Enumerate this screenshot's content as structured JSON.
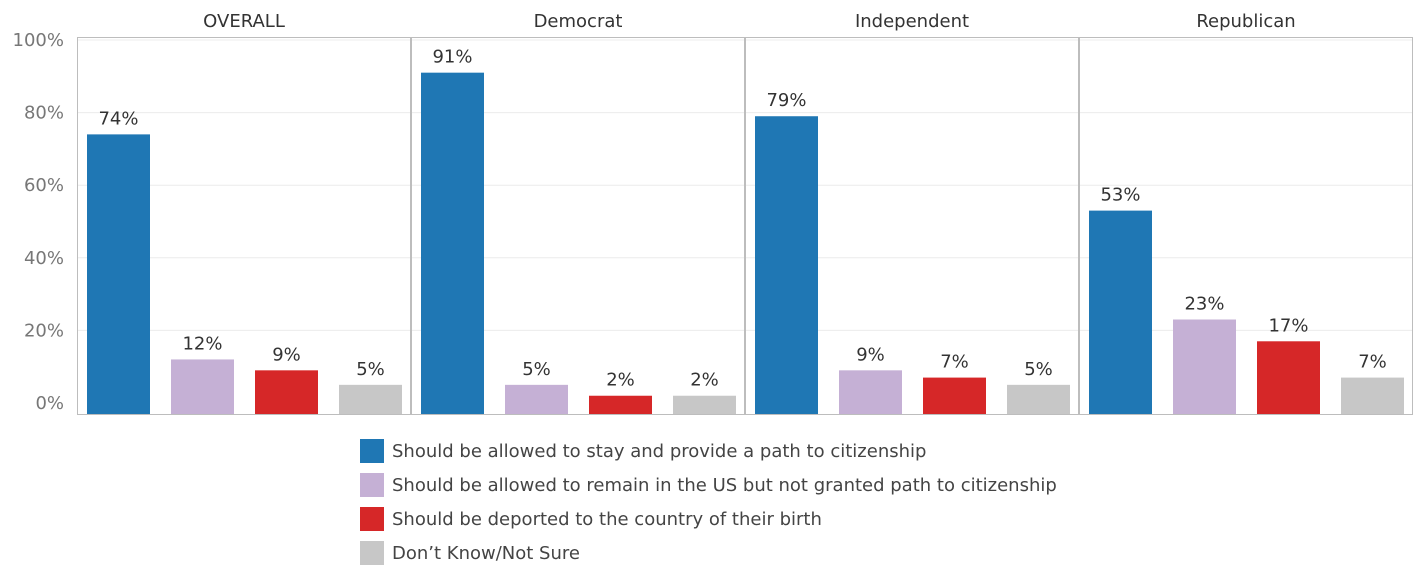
{
  "chart_data": {
    "type": "bar",
    "panels": [
      "OVERALL",
      "Democrat",
      "Independent",
      "Republican"
    ],
    "series": [
      {
        "name": "Should be allowed to stay and provide a path to citizenship",
        "color": "#1f77b4",
        "values": [
          74,
          91,
          79,
          53
        ]
      },
      {
        "name": "Should be allowed to remain in the US but not granted path to citizenship",
        "color": "#c5b0d5",
        "values": [
          12,
          5,
          9,
          23
        ]
      },
      {
        "name": "Should be deported to the country of their birth",
        "color": "#d62728",
        "values": [
          9,
          2,
          7,
          17
        ]
      },
      {
        "name": "Don’t Know/Not Sure",
        "color": "#c7c7c7",
        "values": [
          5,
          2,
          5,
          7
        ]
      }
    ],
    "value_labels": [
      [
        "74%",
        "91%",
        "79%",
        "53%"
      ],
      [
        "12%",
        "5%",
        "9%",
        "23%"
      ],
      [
        "9%",
        "2%",
        "7%",
        "17%"
      ],
      [
        "5%",
        "2%",
        "5%",
        "7%"
      ]
    ],
    "y_ticks": [
      "0%",
      "20%",
      "40%",
      "60%",
      "80%",
      "100%"
    ],
    "ylim": [
      0,
      100
    ],
    "grid": true,
    "legend_position": "bottom"
  }
}
